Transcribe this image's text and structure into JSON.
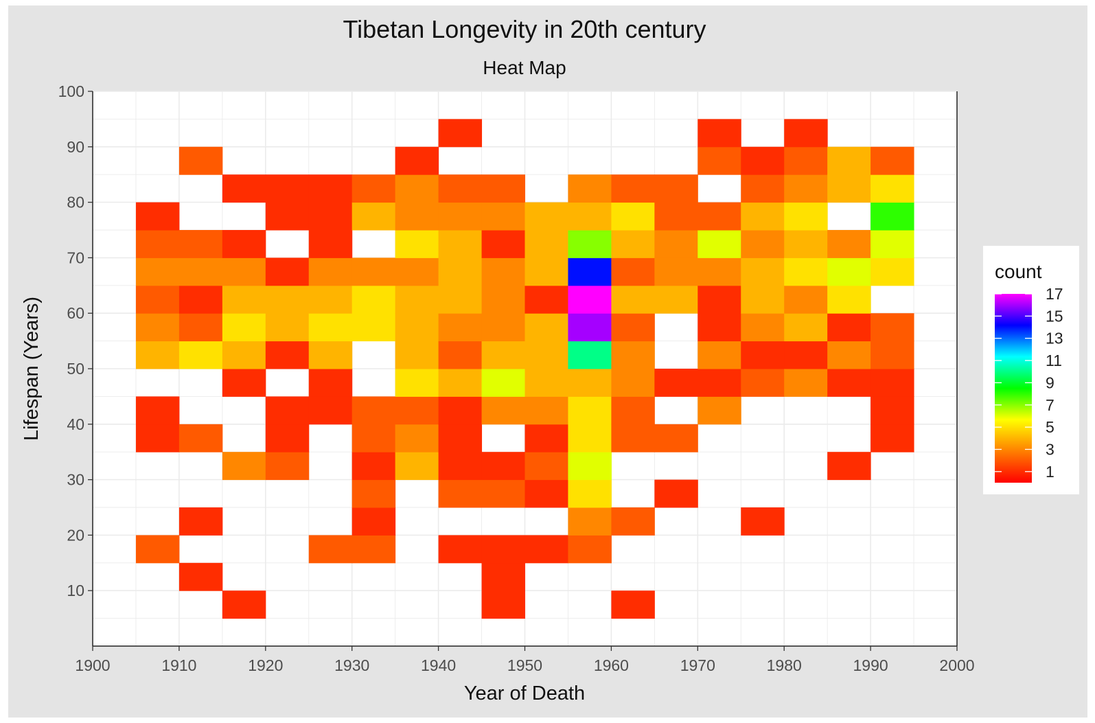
{
  "chart_data": {
    "type": "heatmap",
    "title": "Tibetan Longevity in 20th century",
    "subtitle": "Heat Map",
    "xlabel": "Year of Death",
    "ylabel": "Lifespan (Years)",
    "xlim": [
      1900,
      2000
    ],
    "ylim": [
      0,
      100
    ],
    "x_ticks": [
      1900,
      1910,
      1920,
      1930,
      1940,
      1950,
      1960,
      1970,
      1980,
      1990,
      2000
    ],
    "y_ticks": [
      10,
      20,
      30,
      40,
      50,
      60,
      70,
      80,
      90,
      100
    ],
    "bin_width_x": 5,
    "bin_height_y": 5,
    "grid": true,
    "legend": {
      "title": "count",
      "position": "right",
      "ticks": [
        1,
        3,
        5,
        7,
        9,
        11,
        13,
        15,
        17
      ],
      "range": [
        0,
        17
      ],
      "colors": [
        "#ff0000",
        "#ff7f00",
        "#ffff00",
        "#00ff00",
        "#00ffff",
        "#0000ff",
        "#ff00ff"
      ]
    },
    "cells": [
      [
        1905,
        35,
        1
      ],
      [
        1905,
        40,
        1
      ],
      [
        1905,
        15,
        2
      ],
      [
        1905,
        50,
        4
      ],
      [
        1905,
        55,
        3
      ],
      [
        1905,
        60,
        2
      ],
      [
        1905,
        65,
        3
      ],
      [
        1905,
        70,
        2
      ],
      [
        1905,
        75,
        1
      ],
      [
        1910,
        10,
        1
      ],
      [
        1910,
        20,
        1
      ],
      [
        1910,
        35,
        2
      ],
      [
        1910,
        50,
        5
      ],
      [
        1910,
        55,
        2
      ],
      [
        1910,
        60,
        1
      ],
      [
        1910,
        65,
        3
      ],
      [
        1910,
        70,
        2
      ],
      [
        1910,
        85,
        2
      ],
      [
        1915,
        5,
        1
      ],
      [
        1915,
        30,
        3
      ],
      [
        1915,
        45,
        1
      ],
      [
        1915,
        50,
        4
      ],
      [
        1915,
        55,
        5
      ],
      [
        1915,
        60,
        4
      ],
      [
        1915,
        65,
        3
      ],
      [
        1915,
        70,
        1
      ],
      [
        1915,
        80,
        1
      ],
      [
        1920,
        30,
        2
      ],
      [
        1920,
        35,
        1
      ],
      [
        1920,
        40,
        1
      ],
      [
        1920,
        50,
        1
      ],
      [
        1920,
        55,
        4
      ],
      [
        1920,
        60,
        4
      ],
      [
        1920,
        65,
        1
      ],
      [
        1920,
        75,
        1
      ],
      [
        1920,
        80,
        1
      ],
      [
        1925,
        15,
        2
      ],
      [
        1925,
        40,
        1
      ],
      [
        1925,
        45,
        1
      ],
      [
        1925,
        50,
        4
      ],
      [
        1925,
        55,
        5
      ],
      [
        1925,
        60,
        4
      ],
      [
        1925,
        65,
        3
      ],
      [
        1925,
        70,
        1
      ],
      [
        1925,
        75,
        1
      ],
      [
        1925,
        80,
        1
      ],
      [
        1930,
        15,
        2
      ],
      [
        1930,
        20,
        1
      ],
      [
        1930,
        25,
        2
      ],
      [
        1930,
        30,
        1
      ],
      [
        1930,
        35,
        2
      ],
      [
        1930,
        40,
        2
      ],
      [
        1930,
        55,
        5
      ],
      [
        1930,
        60,
        5
      ],
      [
        1930,
        65,
        3
      ],
      [
        1930,
        75,
        4
      ],
      [
        1930,
        80,
        2
      ],
      [
        1935,
        30,
        4
      ],
      [
        1935,
        35,
        3
      ],
      [
        1935,
        40,
        2
      ],
      [
        1935,
        45,
        5
      ],
      [
        1935,
        50,
        4
      ],
      [
        1935,
        55,
        4
      ],
      [
        1935,
        60,
        4
      ],
      [
        1935,
        65,
        3
      ],
      [
        1935,
        70,
        5
      ],
      [
        1935,
        75,
        3
      ],
      [
        1935,
        80,
        3
      ],
      [
        1935,
        85,
        1
      ],
      [
        1940,
        15,
        1
      ],
      [
        1940,
        25,
        2
      ],
      [
        1940,
        30,
        1
      ],
      [
        1940,
        35,
        1
      ],
      [
        1940,
        40,
        1
      ],
      [
        1940,
        45,
        4
      ],
      [
        1940,
        50,
        2
      ],
      [
        1940,
        55,
        3
      ],
      [
        1940,
        60,
        4
      ],
      [
        1940,
        65,
        4
      ],
      [
        1940,
        70,
        4
      ],
      [
        1940,
        75,
        3
      ],
      [
        1940,
        80,
        2
      ],
      [
        1940,
        90,
        1
      ],
      [
        1945,
        5,
        1
      ],
      [
        1945,
        10,
        1
      ],
      [
        1945,
        15,
        1
      ],
      [
        1945,
        25,
        2
      ],
      [
        1945,
        30,
        1
      ],
      [
        1945,
        40,
        3
      ],
      [
        1945,
        45,
        6
      ],
      [
        1945,
        50,
        4
      ],
      [
        1945,
        55,
        3
      ],
      [
        1945,
        60,
        3
      ],
      [
        1945,
        65,
        3
      ],
      [
        1945,
        70,
        1
      ],
      [
        1945,
        75,
        3
      ],
      [
        1945,
        80,
        2
      ],
      [
        1950,
        15,
        1
      ],
      [
        1950,
        25,
        1
      ],
      [
        1950,
        30,
        2
      ],
      [
        1950,
        35,
        1
      ],
      [
        1950,
        40,
        3
      ],
      [
        1950,
        45,
        4
      ],
      [
        1950,
        50,
        4
      ],
      [
        1950,
        55,
        4
      ],
      [
        1950,
        60,
        1
      ],
      [
        1950,
        65,
        4
      ],
      [
        1950,
        70,
        4
      ],
      [
        1950,
        75,
        4
      ],
      [
        1955,
        15,
        2
      ],
      [
        1955,
        20,
        3
      ],
      [
        1955,
        25,
        5
      ],
      [
        1955,
        30,
        6
      ],
      [
        1955,
        35,
        5
      ],
      [
        1955,
        40,
        5
      ],
      [
        1955,
        45,
        4
      ],
      [
        1955,
        50,
        10
      ],
      [
        1955,
        55,
        16
      ],
      [
        1955,
        60,
        17
      ],
      [
        1955,
        65,
        14
      ],
      [
        1955,
        70,
        7
      ],
      [
        1955,
        75,
        4
      ],
      [
        1955,
        80,
        3
      ],
      [
        1960,
        5,
        1
      ],
      [
        1960,
        20,
        2
      ],
      [
        1960,
        35,
        2
      ],
      [
        1960,
        40,
        2
      ],
      [
        1960,
        45,
        3
      ],
      [
        1960,
        50,
        3
      ],
      [
        1960,
        55,
        2
      ],
      [
        1960,
        60,
        4
      ],
      [
        1960,
        65,
        2
      ],
      [
        1960,
        70,
        4
      ],
      [
        1960,
        75,
        5
      ],
      [
        1960,
        80,
        2
      ],
      [
        1965,
        25,
        1
      ],
      [
        1965,
        35,
        2
      ],
      [
        1965,
        45,
        1
      ],
      [
        1965,
        60,
        4
      ],
      [
        1965,
        65,
        3
      ],
      [
        1965,
        70,
        3
      ],
      [
        1965,
        75,
        2
      ],
      [
        1965,
        80,
        2
      ],
      [
        1970,
        40,
        3
      ],
      [
        1970,
        45,
        1
      ],
      [
        1970,
        50,
        3
      ],
      [
        1970,
        55,
        1
      ],
      [
        1970,
        60,
        1
      ],
      [
        1970,
        65,
        3
      ],
      [
        1970,
        70,
        6
      ],
      [
        1970,
        75,
        2
      ],
      [
        1970,
        85,
        2
      ],
      [
        1970,
        90,
        1
      ],
      [
        1975,
        20,
        1
      ],
      [
        1975,
        45,
        2
      ],
      [
        1975,
        50,
        1
      ],
      [
        1975,
        55,
        3
      ],
      [
        1975,
        60,
        4
      ],
      [
        1975,
        65,
        4
      ],
      [
        1975,
        70,
        3
      ],
      [
        1975,
        75,
        4
      ],
      [
        1975,
        80,
        2
      ],
      [
        1975,
        85,
        1
      ],
      [
        1980,
        45,
        3
      ],
      [
        1980,
        50,
        1
      ],
      [
        1980,
        55,
        4
      ],
      [
        1980,
        60,
        3
      ],
      [
        1980,
        65,
        5
      ],
      [
        1980,
        70,
        4
      ],
      [
        1980,
        75,
        5
      ],
      [
        1980,
        80,
        3
      ],
      [
        1980,
        85,
        2
      ],
      [
        1980,
        90,
        1
      ],
      [
        1985,
        30,
        1
      ],
      [
        1985,
        45,
        1
      ],
      [
        1985,
        50,
        3
      ],
      [
        1985,
        55,
        1
      ],
      [
        1985,
        60,
        5
      ],
      [
        1985,
        65,
        6
      ],
      [
        1985,
        70,
        3
      ],
      [
        1985,
        80,
        4
      ],
      [
        1985,
        85,
        4
      ],
      [
        1990,
        35,
        1
      ],
      [
        1990,
        40,
        1
      ],
      [
        1990,
        45,
        1
      ],
      [
        1990,
        50,
        2
      ],
      [
        1990,
        55,
        2
      ],
      [
        1990,
        65,
        5
      ],
      [
        1990,
        70,
        6
      ],
      [
        1990,
        75,
        8
      ],
      [
        1990,
        80,
        5
      ],
      [
        1990,
        85,
        2
      ]
    ]
  }
}
